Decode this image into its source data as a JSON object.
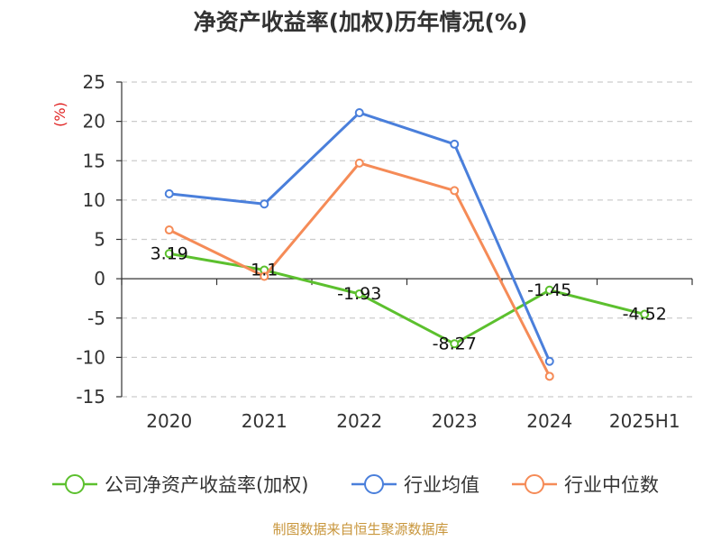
{
  "chart_data": {
    "type": "line",
    "title": "净资产收益率(加权)历年情况(%)",
    "ylabel": "(%)",
    "xlabel": "",
    "categories": [
      "2020",
      "2021",
      "2022",
      "2023",
      "2024",
      "2025H1"
    ],
    "ylim": [
      -15,
      25
    ],
    "yticks": [
      25,
      20,
      15,
      10,
      5,
      0,
      -5,
      -10,
      -15
    ],
    "grid": true,
    "legend_position": "bottom",
    "series": [
      {
        "name": "公司净资产收益率(加权)",
        "color": "#5cc02e",
        "values": [
          3.19,
          1.1,
          -1.93,
          -8.27,
          -1.45,
          -4.52
        ],
        "labels": [
          "3.19",
          "1.1",
          "-1.93",
          "-8.27",
          "-1.45",
          "-4.52"
        ]
      },
      {
        "name": "行业均值",
        "color": "#4a7fdb",
        "values": [
          10.8,
          9.5,
          21.1,
          17.1,
          -10.5,
          null
        ]
      },
      {
        "name": "行业中位数",
        "color": "#f58b57",
        "values": [
          6.2,
          0.3,
          14.7,
          11.2,
          -12.4,
          null
        ]
      }
    ]
  },
  "source": "制图数据来自恒生聚源数据库"
}
